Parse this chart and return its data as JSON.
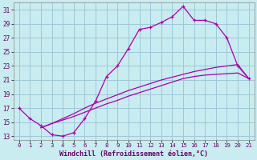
{
  "xlabel": "Windchill (Refroidissement éolien,°C)",
  "bg_color": "#c8ecf0",
  "grid_color": "#9ec8d8",
  "line_color": "#aa00aa",
  "xlim": [
    -0.5,
    21.5
  ],
  "ylim": [
    12.5,
    32
  ],
  "xticks": [
    0,
    1,
    2,
    3,
    4,
    5,
    6,
    7,
    8,
    9,
    10,
    11,
    12,
    13,
    14,
    15,
    16,
    17,
    18,
    19,
    20,
    21
  ],
  "yticks": [
    13,
    15,
    17,
    19,
    21,
    23,
    25,
    27,
    29,
    31
  ],
  "main_x": [
    0,
    1,
    2,
    3,
    4,
    5,
    6,
    7,
    8,
    9,
    10,
    11,
    12,
    13,
    14,
    15,
    16,
    17,
    18,
    19,
    20,
    21
  ],
  "main_y": [
    17,
    15.5,
    14.5,
    13.2,
    13.0,
    13.5,
    15.5,
    18.0,
    21.5,
    23.0,
    25.5,
    28.2,
    28.5,
    29.2,
    30.0,
    31.5,
    29.5,
    29.5,
    29.0,
    27.0,
    23.0,
    21.2
  ],
  "line2_x": [
    2,
    3,
    4,
    5,
    6,
    7,
    8,
    9,
    10,
    11,
    12,
    13,
    14,
    15,
    16,
    17,
    18,
    19,
    20,
    21
  ],
  "line2_y": [
    14.2,
    14.8,
    15.3,
    15.8,
    16.4,
    17.0,
    17.6,
    18.1,
    18.7,
    19.2,
    19.7,
    20.2,
    20.7,
    21.2,
    21.5,
    21.7,
    21.8,
    21.9,
    22.0,
    21.2
  ],
  "line3_x": [
    2,
    3,
    4,
    5,
    6,
    7,
    8,
    9,
    10,
    11,
    12,
    13,
    14,
    15,
    16,
    17,
    18,
    19,
    20,
    21
  ],
  "line3_y": [
    14.2,
    14.8,
    15.5,
    16.2,
    17.0,
    17.7,
    18.3,
    18.9,
    19.5,
    20.0,
    20.5,
    21.0,
    21.4,
    21.8,
    22.2,
    22.5,
    22.8,
    23.0,
    23.2,
    21.2
  ]
}
